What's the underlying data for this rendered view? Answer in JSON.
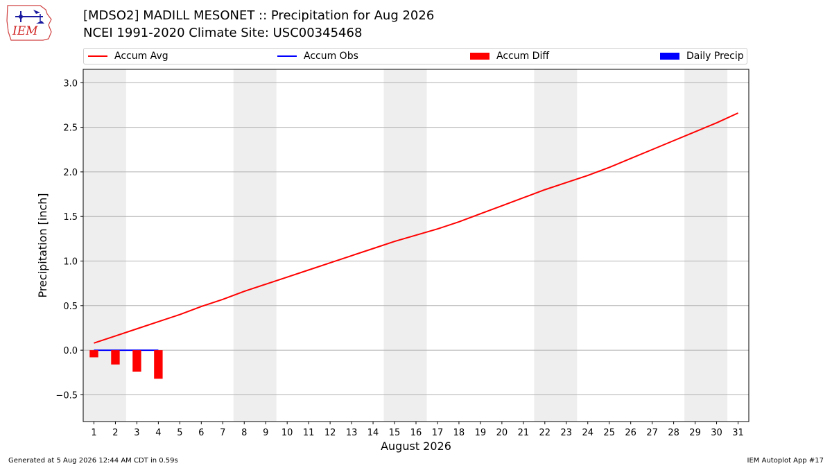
{
  "header": {
    "logo_text": "IEM",
    "title_line1": "[MDSO2] MADILL MESONET :: Precipitation for Aug 2026",
    "title_line2": "NCEI 1991-2020 Climate Site: USC00345468"
  },
  "footer": {
    "generated": "Generated at 5 Aug 2026 12:44 AM CDT in 0.59s",
    "app": "IEM Autoplot App #17"
  },
  "chart_data": {
    "type": "bar",
    "xlabel": "August 2026",
    "ylabel": "Precipitation [inch]",
    "xlim": [
      0.5,
      31.5
    ],
    "ylim": [
      -0.8,
      3.15
    ],
    "yticks": [
      -0.5,
      0.0,
      0.5,
      1.0,
      1.5,
      2.0,
      2.5,
      3.0
    ],
    "ytick_labels": [
      "−0.5",
      "0.0",
      "0.5",
      "1.0",
      "1.5",
      "2.0",
      "2.5",
      "3.0"
    ],
    "days": [
      1,
      2,
      3,
      4,
      5,
      6,
      7,
      8,
      9,
      10,
      11,
      12,
      13,
      14,
      15,
      16,
      17,
      18,
      19,
      20,
      21,
      22,
      23,
      24,
      25,
      26,
      27,
      28,
      29,
      30,
      31
    ],
    "weekend_shading": [
      [
        0.5,
        2.5
      ],
      [
        7.5,
        9.5
      ],
      [
        14.5,
        16.5
      ],
      [
        21.5,
        23.5
      ],
      [
        28.5,
        30.5
      ]
    ],
    "grid": "horizontal",
    "legend_position": "top",
    "legend": [
      {
        "label": "Accum Avg",
        "kind": "line",
        "color": "#ff0000"
      },
      {
        "label": "Accum Obs",
        "kind": "line",
        "color": "#0000ff"
      },
      {
        "label": "Accum Diff",
        "kind": "patch",
        "color": "#ff0000"
      },
      {
        "label": "Daily Precip",
        "kind": "patch",
        "color": "#0000ff"
      }
    ],
    "series": [
      {
        "name": "Accum Avg",
        "kind": "line",
        "color": "#ff0000",
        "x": [
          1,
          2,
          3,
          4,
          5,
          6,
          7,
          8,
          9,
          10,
          11,
          12,
          13,
          14,
          15,
          16,
          17,
          18,
          19,
          20,
          21,
          22,
          23,
          24,
          25,
          26,
          27,
          28,
          29,
          30,
          31
        ],
        "values": [
          0.08,
          0.16,
          0.24,
          0.32,
          0.4,
          0.49,
          0.57,
          0.66,
          0.74,
          0.82,
          0.9,
          0.98,
          1.06,
          1.14,
          1.22,
          1.29,
          1.36,
          1.44,
          1.53,
          1.62,
          1.71,
          1.8,
          1.88,
          1.96,
          2.05,
          2.15,
          2.25,
          2.35,
          2.45,
          2.55,
          2.66
        ]
      },
      {
        "name": "Accum Obs",
        "kind": "line",
        "color": "#0000ff",
        "x": [
          1,
          2,
          3,
          4
        ],
        "values": [
          0.0,
          0.0,
          0.0,
          0.0
        ]
      },
      {
        "name": "Accum Diff",
        "kind": "bar",
        "color": "#ff0000",
        "x": [
          1,
          2,
          3,
          4
        ],
        "values": [
          -0.08,
          -0.16,
          -0.24,
          -0.32
        ]
      },
      {
        "name": "Daily Precip",
        "kind": "bar",
        "color": "#0000ff",
        "x": [
          1,
          2,
          3,
          4
        ],
        "values": [
          0.0,
          0.0,
          0.0,
          0.0
        ]
      }
    ]
  }
}
